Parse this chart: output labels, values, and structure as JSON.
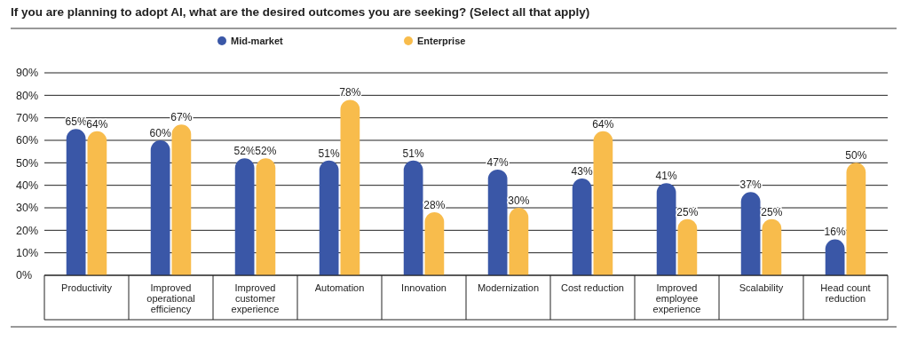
{
  "chart_data": {
    "type": "bar",
    "title": "If you are planning to adopt AI, what are the desired outcomes you are seeking? (Select all that apply)",
    "categories": [
      "Productivity",
      "Improved operational efficiency",
      "Improved customer experience",
      "Automation",
      "Innovation",
      "Modernization",
      "Cost reduction",
      "Improved employee experience",
      "Scalability",
      "Head count reduction"
    ],
    "series": [
      {
        "name": "Mid-market",
        "color": "#3a57a7",
        "values": [
          65,
          60,
          52,
          51,
          51,
          47,
          43,
          41,
          37,
          16
        ],
        "value_labels": [
          "65%",
          "60%",
          "52%",
          "51%",
          "51%",
          "47%",
          "43%",
          "41%",
          "37%",
          "16%"
        ]
      },
      {
        "name": "Enterprise",
        "color": "#f8bc4c",
        "values": [
          64,
          67,
          52,
          78,
          28,
          30,
          64,
          25,
          25,
          50
        ],
        "value_labels": [
          "64%",
          "67%",
          "52%",
          "78%",
          "28%",
          "30%",
          "64%",
          "25%",
          "25%",
          "50%"
        ]
      }
    ],
    "ylim": [
      0,
      90
    ],
    "yticks": [
      {
        "value": 0,
        "label": "0%"
      },
      {
        "value": 10,
        "label": "10%"
      },
      {
        "value": 20,
        "label": "20%"
      },
      {
        "value": 30,
        "label": "30%"
      },
      {
        "value": 40,
        "label": "40%"
      },
      {
        "value": 50,
        "label": "50%"
      },
      {
        "value": 60,
        "label": "60%"
      },
      {
        "value": 70,
        "label": "70%"
      },
      {
        "value": 80,
        "label": "80%"
      },
      {
        "value": 90,
        "label": "90%"
      }
    ],
    "grid": "y",
    "legend": "top"
  }
}
